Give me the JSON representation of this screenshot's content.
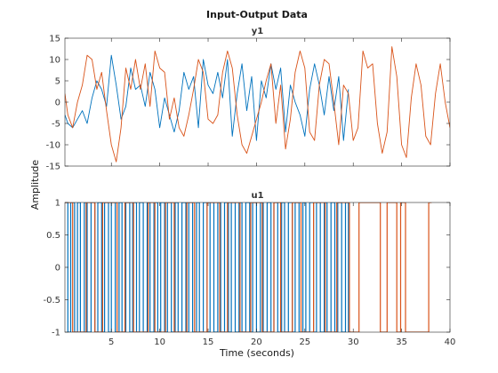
{
  "figure": {
    "title": "Input-Output Data",
    "ylabel": "Amplitude",
    "xlabel": "Time (seconds)"
  },
  "chart_data": [
    {
      "type": "line",
      "title": "y1",
      "xlim": [
        0.2,
        40
      ],
      "ylim": [
        -15,
        15
      ],
      "xticks": [
        5,
        10,
        15,
        20,
        25,
        30,
        35,
        40
      ],
      "yticks": [
        -15,
        -10,
        -5,
        0,
        5,
        10,
        15
      ],
      "series": [
        {
          "color": "#0072BD",
          "x": [
            0.2,
            0.5,
            1.0,
            1.5,
            2.0,
            2.5,
            3.0,
            3.5,
            4.0,
            4.5,
            5.0,
            5.5,
            6.0,
            6.5,
            7.0,
            7.5,
            8.0,
            8.5,
            9.0,
            9.5,
            10.0,
            10.5,
            11.0,
            11.5,
            12.0,
            12.5,
            13.0,
            13.5,
            14.0,
            14.5,
            15.0,
            15.5,
            16.0,
            16.5,
            17.0,
            17.5,
            18.0,
            18.5,
            19.0,
            19.5,
            20.0,
            20.5,
            21.0,
            21.5,
            22.0,
            22.5,
            23.0,
            23.5,
            24.0,
            24.5,
            25.0,
            25.5,
            26.0,
            26.5,
            27.0,
            27.5,
            28.0,
            28.5,
            29.0,
            29.5
          ],
          "y": [
            -3,
            -5,
            -6,
            -4,
            -2,
            -5,
            1,
            5,
            3,
            -1,
            11,
            4,
            -4,
            -1,
            8,
            3,
            4,
            -1,
            7,
            3,
            -6,
            1,
            -3,
            -7,
            -2,
            7,
            3,
            6,
            -6,
            10,
            4,
            2,
            7,
            1,
            10,
            -8,
            2,
            9,
            -2,
            6,
            -9,
            5,
            1,
            9,
            3,
            8,
            -7,
            4,
            0,
            -3,
            -8,
            3,
            9,
            4,
            -3,
            6,
            -2,
            6,
            -9,
            3
          ]
        },
        {
          "color": "#D95319",
          "x": [
            0.2,
            0.5,
            1.0,
            1.5,
            2.0,
            2.5,
            3.0,
            3.5,
            4.0,
            4.5,
            5.0,
            5.5,
            6.0,
            6.5,
            7.0,
            7.5,
            8.0,
            8.5,
            9.0,
            9.5,
            10.0,
            10.5,
            11.0,
            11.5,
            12.0,
            12.5,
            13.0,
            13.5,
            14.0,
            14.5,
            15.0,
            15.5,
            16.0,
            16.5,
            17.0,
            17.5,
            18.0,
            18.5,
            19.0,
            19.5,
            20.0,
            20.5,
            21.0,
            21.5,
            22.0,
            22.5,
            23.0,
            23.5,
            24.0,
            24.5,
            25.0,
            25.5,
            26.0,
            26.5,
            27.0,
            27.5,
            28.0,
            28.5,
            29.0,
            29.5,
            30.0,
            30.5,
            31.0,
            31.5,
            32.0,
            32.5,
            33.0,
            33.5,
            34.0,
            34.5,
            35.0,
            35.5,
            36.0,
            36.5,
            37.0,
            37.5,
            38.0,
            38.5,
            39.0,
            39.5,
            40.0
          ],
          "y": [
            2,
            -3,
            -6,
            0,
            4,
            11,
            10,
            3,
            7,
            -2,
            -10,
            -14,
            -6,
            8,
            3,
            10,
            3,
            9,
            -1,
            12,
            8,
            7,
            -4,
            1,
            -6,
            -8,
            -3,
            3,
            10,
            7,
            -4,
            -5,
            -3,
            7,
            12,
            8,
            -3,
            -10,
            -12,
            -8,
            -4,
            0,
            5,
            9,
            -5,
            4,
            -11,
            -4,
            7,
            12,
            8,
            -7,
            -9,
            4,
            10,
            9,
            0,
            -10,
            4,
            2,
            -9,
            -6,
            12,
            8,
            9,
            -5,
            -12,
            -7,
            13,
            6,
            -10,
            -13,
            1,
            9,
            4,
            -8,
            -10,
            2,
            9,
            0,
            -6
          ]
        }
      ]
    },
    {
      "type": "line",
      "title": "u1",
      "xlim": [
        0.2,
        40
      ],
      "ylim": [
        -1,
        1
      ],
      "xticks": [
        5,
        10,
        15,
        20,
        25,
        30,
        35,
        40
      ],
      "yticks": [
        -1,
        -0.5,
        0,
        0.5,
        1
      ],
      "series": [
        {
          "color": "#0072BD",
          "step": true,
          "x": [
            0.2,
            0.5,
            0.8,
            1.2,
            1.5,
            1.8,
            2.2,
            2.5,
            2.9,
            3.3,
            3.6,
            4.0,
            4.3,
            4.7,
            5.0,
            5.4,
            5.8,
            6.1,
            6.5,
            6.9,
            7.2,
            7.6,
            7.9,
            8.3,
            8.7,
            9.0,
            9.4,
            9.8,
            10.1,
            10.5,
            10.8,
            11.2,
            11.6,
            11.9,
            12.3,
            12.7,
            13.0,
            13.4,
            13.8,
            14.1,
            14.5,
            14.9,
            15.2,
            15.6,
            16.0,
            16.3,
            16.7,
            17.1,
            17.4,
            17.8,
            18.2,
            18.5,
            18.9,
            19.3,
            19.6,
            20.0,
            20.4,
            20.7,
            21.1,
            21.5,
            21.8,
            22.2,
            22.6,
            22.9,
            23.3,
            23.7,
            24.0,
            24.4,
            24.8,
            25.1,
            25.5,
            25.9,
            26.2,
            26.6,
            27.0,
            27.3,
            27.7,
            28.1,
            28.4,
            28.8,
            29.2,
            29.5
          ],
          "y": [
            1,
            -1,
            1,
            -1,
            1,
            -1,
            1,
            -1,
            1,
            -1,
            1,
            -1,
            1,
            -1,
            1,
            -1,
            1,
            -1,
            1,
            -1,
            1,
            -1,
            1,
            -1,
            1,
            -1,
            1,
            -1,
            1,
            -1,
            1,
            -1,
            1,
            -1,
            1,
            -1,
            1,
            -1,
            1,
            -1,
            1,
            -1,
            1,
            -1,
            1,
            -1,
            1,
            -1,
            1,
            -1,
            1,
            -1,
            1,
            -1,
            1,
            -1,
            1,
            -1,
            1,
            -1,
            1,
            -1,
            1,
            -1,
            1,
            -1,
            1,
            -1,
            1,
            -1,
            1,
            -1,
            1,
            -1,
            1,
            -1,
            1,
            -1,
            1,
            -1,
            1,
            -1
          ]
        },
        {
          "color": "#D95319",
          "step": true,
          "x": [
            0.2,
            1.0,
            2.4,
            3.3,
            4.1,
            5.6,
            6.4,
            7.3,
            8.8,
            9.5,
            10.6,
            11.5,
            12.8,
            13.6,
            14.9,
            16.2,
            17.0,
            18.3,
            19.4,
            20.6,
            21.8,
            22.5,
            23.7,
            24.6,
            25.9,
            27.1,
            28.3,
            29.6,
            30.6,
            32.8,
            33.5,
            34.5,
            34.9,
            35.4,
            37.8
          ],
          "y": [
            1,
            -1,
            1,
            -1,
            1,
            -1,
            1,
            -1,
            1,
            -1,
            1,
            -1,
            1,
            -1,
            1,
            -1,
            1,
            -1,
            1,
            -1,
            1,
            -1,
            1,
            -1,
            1,
            -1,
            1,
            -1,
            1,
            -1,
            1,
            -1,
            1,
            -1,
            1
          ]
        }
      ]
    }
  ]
}
